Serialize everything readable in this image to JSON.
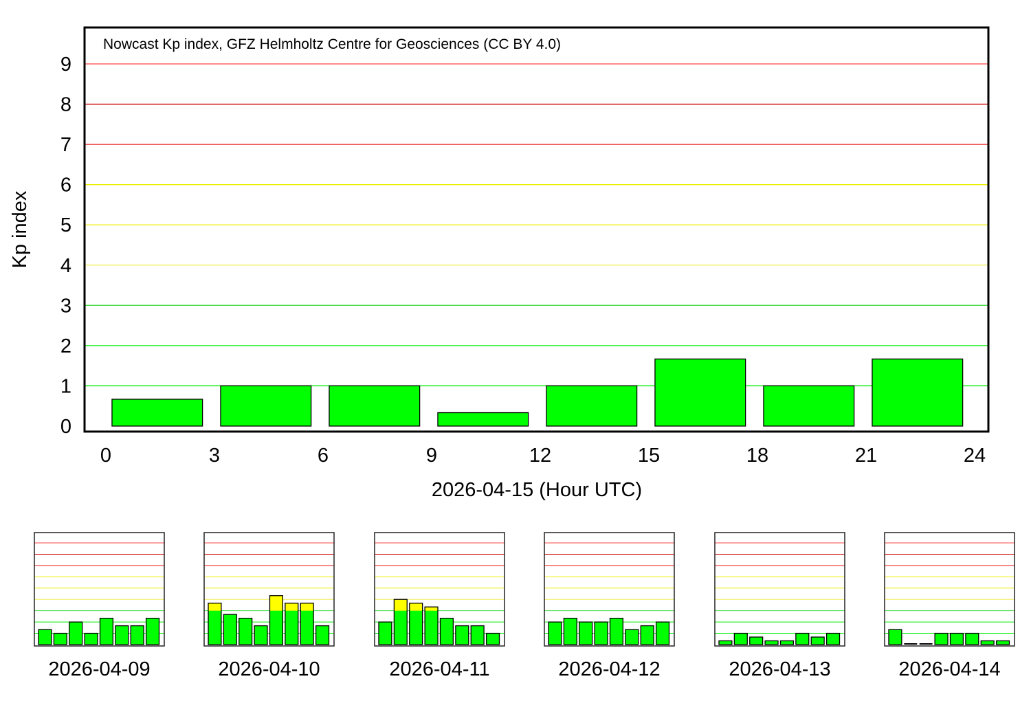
{
  "chart_data": [
    {
      "type": "bar",
      "title": "Nowcast Kp index, GFZ Helmholtz Centre for Geosciences (CC BY 4.0)",
      "xlabel": "2026-04-15 (Hour UTC)",
      "ylabel": "Kp index",
      "xlim": [
        0,
        24
      ],
      "ylim": [
        0,
        9
      ],
      "xticks": [
        "0",
        "3",
        "6",
        "9",
        "12",
        "15",
        "18",
        "21",
        "24"
      ],
      "yticks": [
        "0",
        "1",
        "2",
        "3",
        "4",
        "5",
        "6",
        "7",
        "8",
        "9"
      ],
      "x": [
        0,
        3,
        6,
        9,
        12,
        15,
        18,
        21
      ],
      "values": [
        0.667,
        1.0,
        1.0,
        0.333,
        1.0,
        1.667,
        1.0,
        1.667
      ],
      "grid": true,
      "level_colors": {
        "quiet": "#00ff00",
        "active": "#ffff00",
        "storm": "#ff0000"
      }
    },
    {
      "type": "bar",
      "xlabel": "2026-04-09",
      "ylim": [
        0,
        9
      ],
      "values": [
        1.333,
        1.0,
        2.0,
        1.0,
        2.333,
        1.667,
        1.667,
        2.333
      ]
    },
    {
      "type": "bar",
      "xlabel": "2026-04-10",
      "ylim": [
        0,
        9
      ],
      "values": [
        3.667,
        2.667,
        2.333,
        1.667,
        4.333,
        3.667,
        3.667,
        1.667
      ]
    },
    {
      "type": "bar",
      "xlabel": "2026-04-11",
      "ylim": [
        0,
        9
      ],
      "values": [
        2.0,
        4.0,
        3.667,
        3.333,
        2.333,
        1.667,
        1.667,
        1.0
      ]
    },
    {
      "type": "bar",
      "xlabel": "2026-04-12",
      "ylim": [
        0,
        9
      ],
      "values": [
        2.0,
        2.333,
        2.0,
        2.0,
        2.333,
        1.333,
        1.667,
        2.0
      ]
    },
    {
      "type": "bar",
      "xlabel": "2026-04-13",
      "ylim": [
        0,
        9
      ],
      "values": [
        0.333,
        1.0,
        0.667,
        0.333,
        0.333,
        1.0,
        0.667,
        1.0
      ]
    },
    {
      "type": "bar",
      "xlabel": "2026-04-14",
      "ylim": [
        0,
        9
      ],
      "values": [
        1.333,
        0,
        0,
        1.0,
        1.0,
        1.0,
        0.333,
        0.333
      ]
    }
  ]
}
